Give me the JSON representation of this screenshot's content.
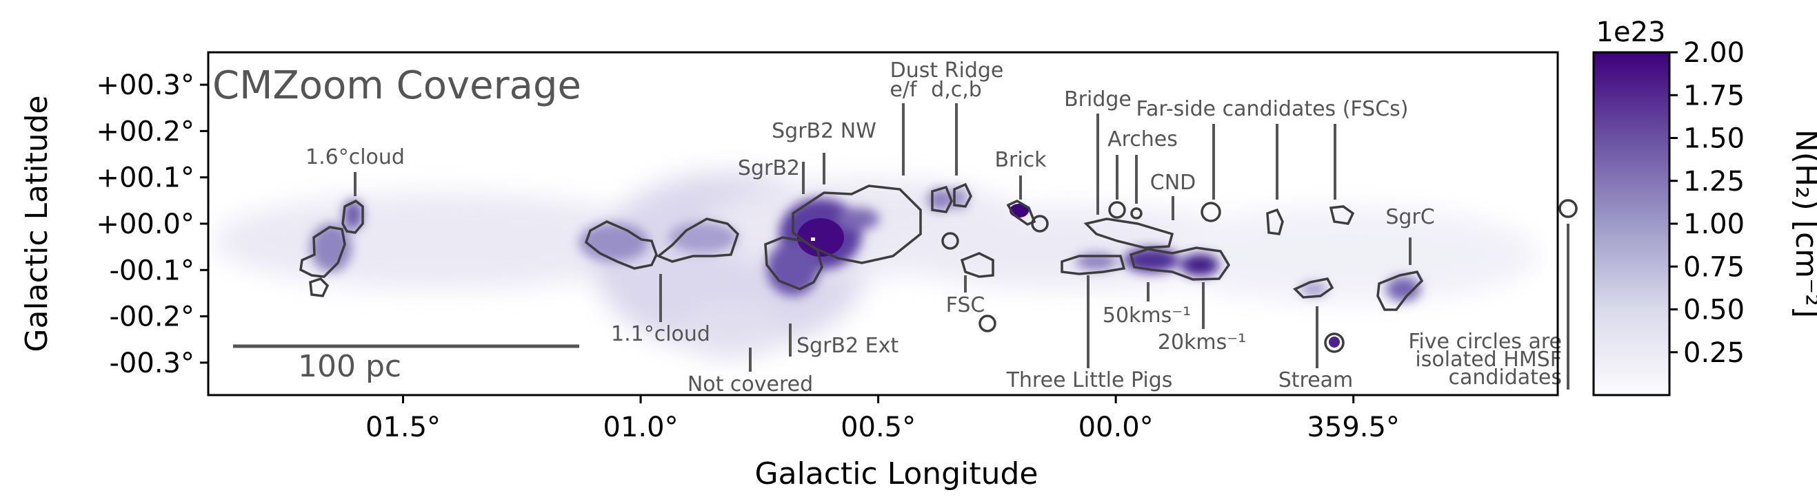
{
  "chart_data": {
    "type": "heatmap",
    "title": "",
    "panel_label": "CMZoom Coverage",
    "xlabel": "Galactic Longitude",
    "ylabel": "Galactic Latitude",
    "x_ticks": [
      "01.5°",
      "01.0°",
      "00.5°",
      "00.0°",
      "359.5°"
    ],
    "y_ticks": [
      "+00.3°",
      "+00.2°",
      "+00.1°",
      "+00.0°",
      "-00.1°",
      "-00.2°",
      "-00.3°"
    ],
    "xlim_deg": [
      1.91,
      -0.93
    ],
    "ylim_deg": [
      -0.37,
      0.37
    ],
    "colormap": "Purples",
    "colorbar": {
      "label": "N(H₂) [cm⁻²]",
      "offset_text": "1e23",
      "ticks": [
        "2.00",
        "1.75",
        "1.50",
        "1.25",
        "1.00",
        "0.75",
        "0.50",
        "0.25"
      ],
      "range": [
        0.0,
        2.0
      ]
    },
    "scale_bar": "100 pc",
    "regions": [
      {
        "name": "1.6°cloud",
        "l": 1.62,
        "b": -0.08
      },
      {
        "name": "1.1°cloud",
        "l": 1.03,
        "b": -0.05
      },
      {
        "name": "Not covered",
        "l": 0.8,
        "b": -0.2
      },
      {
        "name": "SgrB2",
        "l": 0.67,
        "b": -0.03
      },
      {
        "name": "SgrB2 NW",
        "l": 0.66,
        "b": 0.01
      },
      {
        "name": "SgrB2 Ext",
        "l": 0.69,
        "b": -0.09
      },
      {
        "name": "Dust Ridge e/f",
        "l": 0.48,
        "b": 0.05
      },
      {
        "name": "Dust Ridge d,c,b",
        "l": 0.41,
        "b": 0.05
      },
      {
        "name": "FSC",
        "l": 0.35,
        "b": -0.11
      },
      {
        "name": "Brick",
        "l": 0.25,
        "b": 0.02
      },
      {
        "name": "Bridge",
        "l": 0.1,
        "b": -0.06
      },
      {
        "name": "Arches",
        "l": 0.12,
        "b": 0.03
      },
      {
        "name": "CND",
        "l": -0.06,
        "b": -0.07
      },
      {
        "name": "50kms⁻¹",
        "l": -0.02,
        "b": -0.08
      },
      {
        "name": "20kms⁻¹",
        "l": -0.12,
        "b": -0.09
      },
      {
        "name": "Three Little Pigs",
        "l": 0.1,
        "b": -0.09
      },
      {
        "name": "Far-side candidates (FSCs)",
        "l": -0.12,
        "b": 0.02
      },
      {
        "name": "Stream",
        "l": -0.35,
        "b": -0.14
      },
      {
        "name": "SgrC",
        "l": -0.55,
        "b": -0.14
      },
      {
        "name": "isolated HMSF candidate",
        "l": -0.85,
        "b": 0.03
      }
    ]
  },
  "annotations": {
    "cloud_16": "1.6°cloud",
    "cloud_11": "1.1°cloud",
    "not_covered": "Not covered",
    "sgrb2": "SgrB2",
    "sgrb2_nw": "SgrB2 NW",
    "sgrb2_ext": "SgrB2 Ext",
    "dust_ridge": "Dust Ridge",
    "dust_ridge_ef": "e/f",
    "dust_ridge_dcb": "d,c,b",
    "fsc": "FSC",
    "brick": "Brick",
    "bridge": "Bridge",
    "arches": "Arches",
    "cnd": "CND",
    "fscs": "Far-side candidates (FSCs)",
    "sgrc": "SgrC",
    "kms50": "50kms⁻¹",
    "kms20": "20kms⁻¹",
    "three_little_pigs": "Three Little Pigs",
    "stream": "Stream",
    "hmsf_line1": "Five circles are",
    "hmsf_line2": "isolated HMSF",
    "hmsf_line3": "candidates"
  }
}
